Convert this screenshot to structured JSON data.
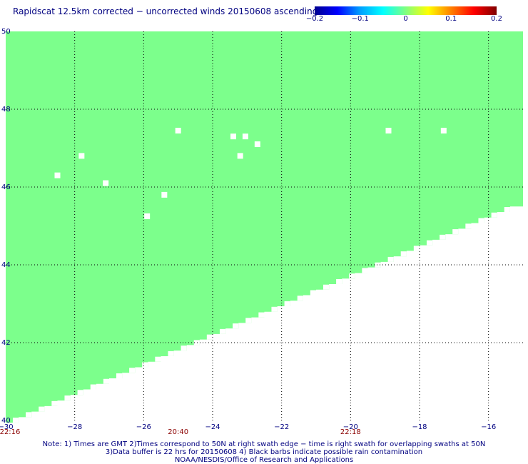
{
  "title": "Rapidscat 12.5km corrected − uncorrected winds 20150608 ascending",
  "colorbar": {
    "ticks": [
      "−0.2",
      "−0.1",
      "0",
      "0.1",
      "0.2"
    ],
    "tick_values": [
      -0.2,
      -0.1,
      0,
      0.1,
      0.2
    ]
  },
  "colors": {
    "swath": "#7cff8c",
    "text": "#000080",
    "time_text": "#8b0000",
    "grid": "#000000"
  },
  "chart_data": {
    "type": "heatmap",
    "xlim": [
      -30,
      -15
    ],
    "ylim": [
      40,
      50
    ],
    "x_ticks": [
      -30,
      -28,
      -26,
      -24,
      -22,
      -20,
      -18,
      -16
    ],
    "x_tick_labels": [
      "−30",
      "−28",
      "−26",
      "−24",
      "−22",
      "−20",
      "−18",
      "−16"
    ],
    "y_ticks": [
      40,
      42,
      44,
      46,
      48,
      50
    ],
    "y_tick_labels": [
      "40",
      "42",
      "44",
      "46",
      "48",
      "50"
    ],
    "grid": true,
    "swath_value": 0,
    "swath_edge": [
      [
        -30,
        39.8
      ],
      [
        -15,
        45.5
      ]
    ],
    "missing_cells": [
      [
        -28.5,
        46.3
      ],
      [
        -27.8,
        46.8
      ],
      [
        -27.1,
        46.1
      ],
      [
        -25.0,
        47.45
      ],
      [
        -25.4,
        45.8
      ],
      [
        -25.9,
        45.25
      ],
      [
        -23.4,
        47.3
      ],
      [
        -23.2,
        46.8
      ],
      [
        -23.05,
        47.3
      ],
      [
        -22.7,
        47.1
      ],
      [
        -18.9,
        47.45
      ],
      [
        -17.3,
        47.45
      ]
    ],
    "time_labels": [
      {
        "x": -30,
        "text": "22:16"
      },
      {
        "x": -25,
        "text": "20:40"
      },
      {
        "x": -20,
        "text": "22:18"
      }
    ]
  },
  "notes": {
    "line1": "Note: 1) Times are GMT 2)Times correspond to 50N at right swath edge − time is right swath for overlapping swaths at 50N",
    "line2": "3)Data buffer is 22 hrs for 20150608 4) Black barbs indicate possible rain contamination",
    "line3": "NOAA/NESDIS/Office of Research and Applications"
  }
}
